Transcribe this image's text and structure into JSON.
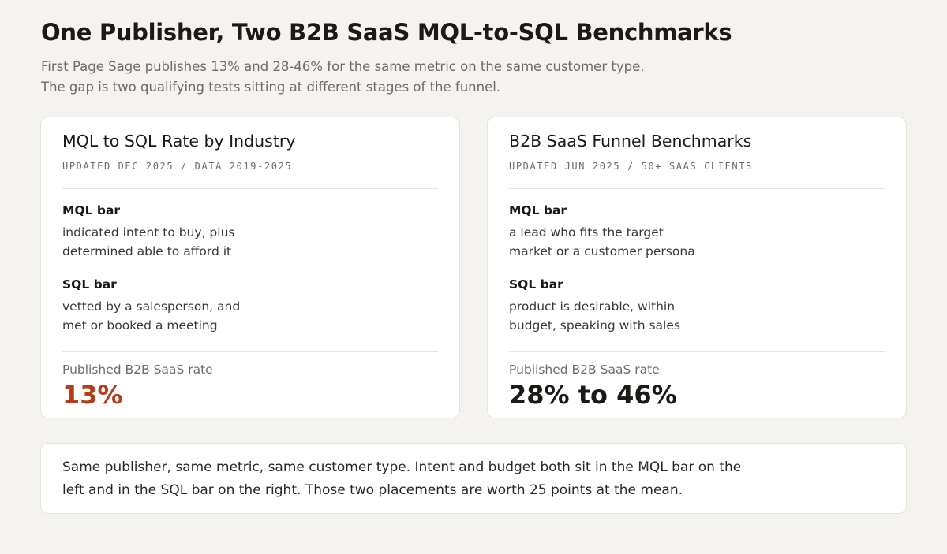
{
  "header": {
    "title": "One Publisher, Two B2B SaaS MQL-to-SQL Benchmarks",
    "subtitle_lines": [
      "First Page Sage publishes 13% and 28-46% for the same metric on the same customer type.",
      "The gap is two qualifying tests sitting at different stages of the funnel."
    ]
  },
  "cards": [
    {
      "title": "MQL to SQL Rate by Industry",
      "meta": "UPDATED DEC 2025 / DATA 2019-2025",
      "mql_heading": "MQL bar",
      "mql_lines": [
        "indicated intent to buy, plus",
        "determined able to afford it"
      ],
      "sql_heading": "SQL bar",
      "sql_lines": [
        "vetted by a salesperson, and",
        "met or booked a meeting"
      ],
      "rate_label": "Published B2B SaaS rate",
      "rate_value": "13%"
    },
    {
      "title": "B2B SaaS Funnel Benchmarks",
      "meta": "UPDATED JUN 2025 / 50+ SAAS CLIENTS",
      "mql_heading": "MQL bar",
      "mql_lines": [
        "a lead who fits the target",
        "market or a customer persona"
      ],
      "sql_heading": "SQL bar",
      "sql_lines": [
        "product is desirable, within",
        "budget, speaking with sales"
      ],
      "rate_label": "Published B2B SaaS rate",
      "rate_value": "28% to 46%"
    }
  ],
  "note": {
    "lines": [
      "Same publisher, same metric, same customer type. Intent and budget both sit in the MQL bar on the",
      "left and in the SQL bar on the right. Those two placements are worth 25 points at the mean."
    ]
  },
  "colors": {
    "background": "#f4f3ef",
    "accent": "#b0401c"
  }
}
